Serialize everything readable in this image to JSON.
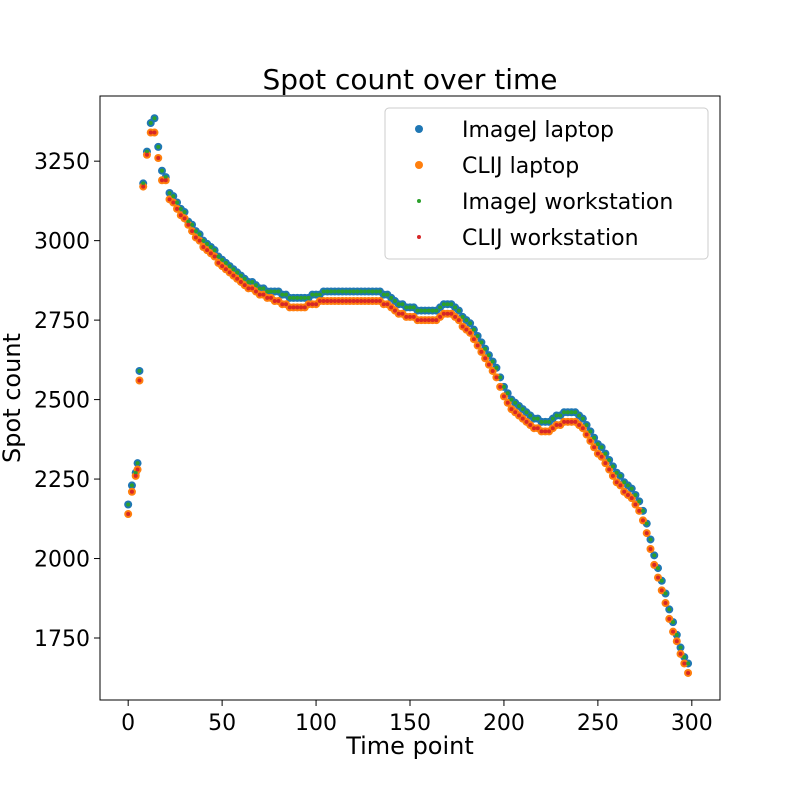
{
  "chart_data": {
    "type": "scatter",
    "title": "Spot count over time",
    "xlabel": "Time point",
    "ylabel": "Spot count",
    "xlim": [
      -15,
      315
    ],
    "ylim": [
      1555,
      3455
    ],
    "xticks": [
      0,
      50,
      100,
      150,
      200,
      250,
      300
    ],
    "yticks": [
      1750,
      2000,
      2250,
      2500,
      2750,
      3000,
      3250
    ],
    "legend_position": "top-right",
    "grid": false,
    "x": [
      0,
      2,
      4,
      5,
      6,
      8,
      10,
      12,
      14,
      16,
      18,
      20,
      22,
      24,
      26,
      28,
      30,
      32,
      34,
      36,
      38,
      40,
      42,
      44,
      46,
      48,
      50,
      52,
      54,
      56,
      58,
      60,
      62,
      64,
      66,
      68,
      70,
      72,
      74,
      76,
      78,
      80,
      82,
      84,
      86,
      88,
      90,
      92,
      94,
      96,
      98,
      100,
      102,
      104,
      106,
      108,
      110,
      112,
      114,
      116,
      118,
      120,
      122,
      124,
      126,
      128,
      130,
      132,
      134,
      136,
      138,
      140,
      142,
      144,
      146,
      148,
      150,
      152,
      154,
      156,
      158,
      160,
      162,
      164,
      166,
      168,
      170,
      172,
      174,
      176,
      178,
      180,
      182,
      184,
      186,
      188,
      190,
      192,
      194,
      196,
      198,
      200,
      202,
      204,
      206,
      208,
      210,
      212,
      214,
      216,
      218,
      220,
      222,
      224,
      226,
      228,
      230,
      232,
      234,
      236,
      238,
      240,
      242,
      244,
      246,
      248,
      250,
      252,
      254,
      256,
      258,
      260,
      262,
      264,
      266,
      268,
      270,
      272,
      274,
      276,
      278,
      280,
      282,
      284,
      286,
      288,
      290,
      292,
      294,
      296,
      298
    ],
    "series": [
      {
        "name": "ImageJ laptop",
        "color": "#1f77b4",
        "marker": "large",
        "y": [
          2170,
          2230,
          2270,
          2300,
          2590,
          3180,
          3280,
          3370,
          3385,
          3295,
          3220,
          3200,
          3150,
          3140,
          3120,
          3100,
          3090,
          3060,
          3050,
          3030,
          3020,
          3000,
          2990,
          2980,
          2970,
          2950,
          2940,
          2930,
          2920,
          2910,
          2900,
          2890,
          2880,
          2870,
          2870,
          2860,
          2850,
          2850,
          2840,
          2840,
          2840,
          2840,
          2830,
          2830,
          2820,
          2820,
          2820,
          2820,
          2820,
          2820,
          2830,
          2830,
          2830,
          2840,
          2840,
          2840,
          2840,
          2840,
          2840,
          2840,
          2840,
          2840,
          2840,
          2840,
          2840,
          2840,
          2840,
          2840,
          2840,
          2830,
          2830,
          2820,
          2810,
          2800,
          2800,
          2790,
          2790,
          2790,
          2780,
          2780,
          2780,
          2780,
          2780,
          2780,
          2790,
          2800,
          2800,
          2800,
          2790,
          2780,
          2760,
          2750,
          2740,
          2720,
          2700,
          2680,
          2660,
          2640,
          2620,
          2600,
          2570,
          2540,
          2520,
          2500,
          2490,
          2480,
          2470,
          2460,
          2450,
          2440,
          2440,
          2430,
          2430,
          2430,
          2440,
          2450,
          2450,
          2460,
          2460,
          2460,
          2460,
          2450,
          2440,
          2420,
          2400,
          2380,
          2360,
          2350,
          2330,
          2310,
          2290,
          2270,
          2260,
          2240,
          2230,
          2220,
          2200,
          2180,
          2150,
          2110,
          2060,
          2010,
          1970,
          1930,
          1890,
          1840,
          1800,
          1760,
          1720,
          1690,
          1670
        ]
      },
      {
        "name": "CLIJ laptop",
        "color": "#ff7f0e",
        "marker": "large",
        "y": [
          2140,
          2210,
          2260,
          2280,
          2560,
          3170,
          3270,
          3340,
          3340,
          3260,
          3190,
          3190,
          3130,
          3120,
          3100,
          3080,
          3070,
          3050,
          3030,
          3010,
          3000,
          2980,
          2970,
          2960,
          2950,
          2930,
          2920,
          2910,
          2900,
          2890,
          2880,
          2870,
          2860,
          2850,
          2850,
          2840,
          2830,
          2830,
          2820,
          2820,
          2810,
          2810,
          2800,
          2800,
          2790,
          2790,
          2790,
          2790,
          2790,
          2800,
          2800,
          2800,
          2810,
          2810,
          2810,
          2810,
          2810,
          2810,
          2810,
          2810,
          2810,
          2810,
          2810,
          2810,
          2810,
          2810,
          2810,
          2810,
          2810,
          2800,
          2800,
          2790,
          2780,
          2770,
          2770,
          2760,
          2760,
          2760,
          2750,
          2750,
          2750,
          2750,
          2750,
          2750,
          2760,
          2770,
          2770,
          2770,
          2760,
          2750,
          2730,
          2720,
          2710,
          2690,
          2670,
          2650,
          2630,
          2610,
          2590,
          2570,
          2540,
          2510,
          2490,
          2470,
          2460,
          2450,
          2440,
          2430,
          2420,
          2410,
          2410,
          2400,
          2400,
          2400,
          2410,
          2420,
          2420,
          2430,
          2430,
          2430,
          2430,
          2420,
          2410,
          2390,
          2370,
          2350,
          2330,
          2320,
          2300,
          2280,
          2260,
          2240,
          2230,
          2210,
          2200,
          2190,
          2170,
          2150,
          2120,
          2080,
          2030,
          1980,
          1940,
          1900,
          1860,
          1810,
          1770,
          1740,
          1700,
          1670,
          1640
        ]
      },
      {
        "name": "ImageJ workstation",
        "color": "#2ca02c",
        "marker": "small",
        "y": [
          2170,
          2230,
          2270,
          2300,
          2590,
          3180,
          3280,
          3370,
          3385,
          3295,
          3220,
          3200,
          3150,
          3140,
          3120,
          3100,
          3090,
          3060,
          3050,
          3030,
          3020,
          3000,
          2990,
          2980,
          2970,
          2950,
          2940,
          2930,
          2920,
          2910,
          2900,
          2890,
          2880,
          2870,
          2870,
          2860,
          2850,
          2850,
          2840,
          2840,
          2840,
          2840,
          2830,
          2830,
          2820,
          2820,
          2820,
          2820,
          2820,
          2820,
          2830,
          2830,
          2830,
          2840,
          2840,
          2840,
          2840,
          2840,
          2840,
          2840,
          2840,
          2840,
          2840,
          2840,
          2840,
          2840,
          2840,
          2840,
          2840,
          2830,
          2830,
          2820,
          2810,
          2800,
          2800,
          2790,
          2790,
          2790,
          2780,
          2780,
          2780,
          2780,
          2780,
          2780,
          2790,
          2800,
          2800,
          2800,
          2790,
          2780,
          2760,
          2750,
          2740,
          2720,
          2700,
          2680,
          2660,
          2640,
          2620,
          2600,
          2570,
          2540,
          2520,
          2500,
          2490,
          2480,
          2470,
          2460,
          2450,
          2440,
          2440,
          2430,
          2430,
          2430,
          2440,
          2450,
          2450,
          2460,
          2460,
          2460,
          2460,
          2450,
          2440,
          2420,
          2400,
          2380,
          2360,
          2350,
          2330,
          2310,
          2290,
          2270,
          2260,
          2240,
          2230,
          2220,
          2200,
          2180,
          2150,
          2110,
          2060,
          2010,
          1970,
          1930,
          1890,
          1840,
          1800,
          1760,
          1720,
          1690,
          1670
        ]
      },
      {
        "name": "CLIJ workstation",
        "color": "#d62728",
        "marker": "small",
        "y": [
          2140,
          2210,
          2260,
          2280,
          2560,
          3170,
          3270,
          3340,
          3340,
          3260,
          3190,
          3190,
          3130,
          3120,
          3100,
          3080,
          3070,
          3050,
          3030,
          3010,
          3000,
          2980,
          2970,
          2960,
          2950,
          2930,
          2920,
          2910,
          2900,
          2890,
          2880,
          2870,
          2860,
          2850,
          2850,
          2840,
          2830,
          2830,
          2820,
          2820,
          2810,
          2810,
          2800,
          2800,
          2790,
          2790,
          2790,
          2790,
          2790,
          2800,
          2800,
          2800,
          2810,
          2810,
          2810,
          2810,
          2810,
          2810,
          2810,
          2810,
          2810,
          2810,
          2810,
          2810,
          2810,
          2810,
          2810,
          2810,
          2810,
          2800,
          2800,
          2790,
          2780,
          2770,
          2770,
          2760,
          2760,
          2760,
          2750,
          2750,
          2750,
          2750,
          2750,
          2750,
          2760,
          2770,
          2770,
          2770,
          2760,
          2750,
          2730,
          2720,
          2710,
          2690,
          2670,
          2650,
          2630,
          2610,
          2590,
          2570,
          2540,
          2510,
          2490,
          2470,
          2460,
          2450,
          2440,
          2430,
          2420,
          2410,
          2410,
          2400,
          2400,
          2400,
          2410,
          2420,
          2420,
          2430,
          2430,
          2430,
          2430,
          2420,
          2410,
          2390,
          2370,
          2350,
          2330,
          2320,
          2300,
          2280,
          2260,
          2240,
          2230,
          2210,
          2200,
          2190,
          2170,
          2150,
          2120,
          2080,
          2030,
          1980,
          1940,
          1900,
          1860,
          1810,
          1770,
          1740,
          1700,
          1670,
          1640
        ]
      }
    ]
  }
}
